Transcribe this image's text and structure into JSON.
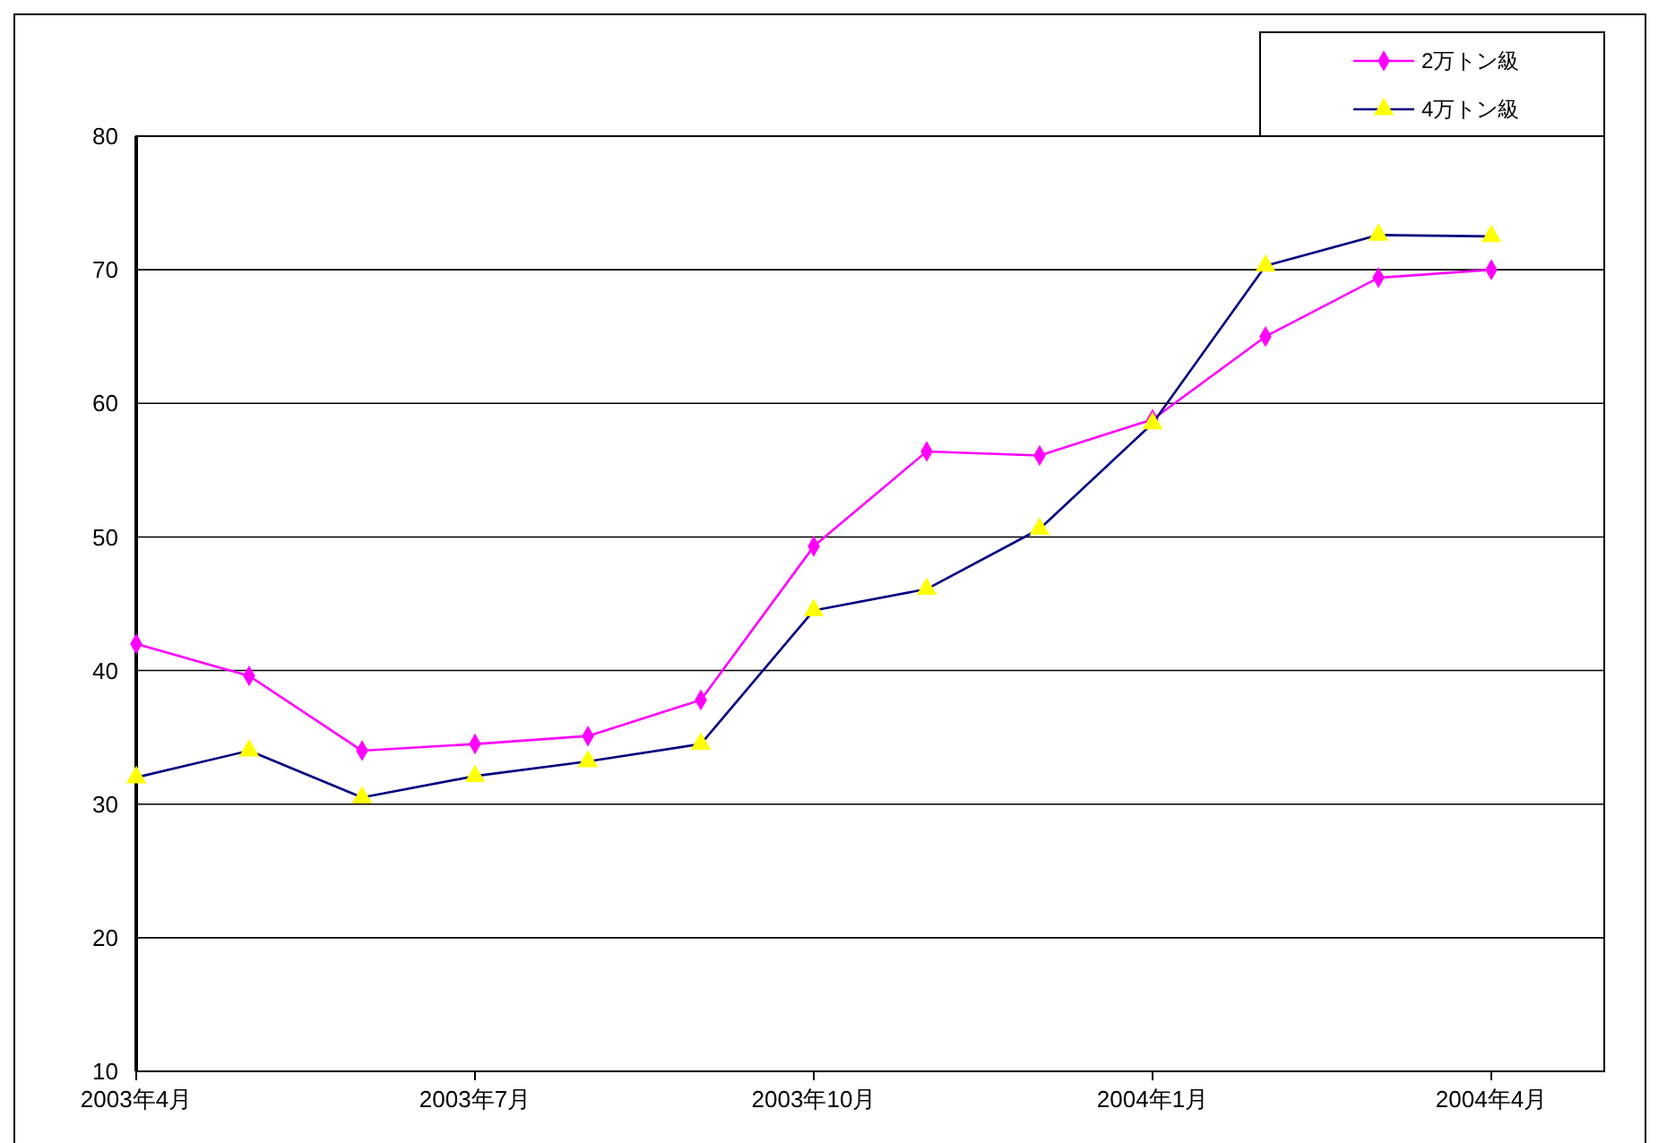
{
  "chart_data": {
    "type": "line",
    "categories": [
      "2003年4月",
      null,
      null,
      "2003年7月",
      null,
      null,
      "2003年10月",
      null,
      null,
      "2004年1月",
      null,
      null,
      "2004年4月"
    ],
    "series": [
      {
        "name": "2万トン級",
        "color": "#ff00ff",
        "marker": "diamond",
        "values": [
          42.0,
          39.6,
          34.0,
          34.5,
          35.1,
          37.8,
          49.3,
          56.4,
          56.1,
          58.8,
          65.0,
          69.4,
          70.0
        ]
      },
      {
        "name": "4万トン級",
        "color": "#000080",
        "marker": "triangle",
        "colors": [
          "#ffff00",
          "#ffff00",
          "#ffff00",
          "#ffff00",
          "#ffff00",
          "#ffff00",
          "#ffff00",
          "#ffff00",
          "#ffff00",
          "#ffff00",
          "#ffff00",
          "#ffff00",
          "#ffff00"
        ],
        "values": [
          32.0,
          34.0,
          30.5,
          32.1,
          33.2,
          34.5,
          44.5,
          46.1,
          50.6,
          58.5,
          70.3,
          72.6,
          72.5
        ]
      }
    ],
    "ylim": [
      10,
      80
    ],
    "yticks": [
      10,
      20,
      30,
      40,
      50,
      60,
      70,
      80
    ],
    "grid": "y",
    "legend": "top right"
  }
}
